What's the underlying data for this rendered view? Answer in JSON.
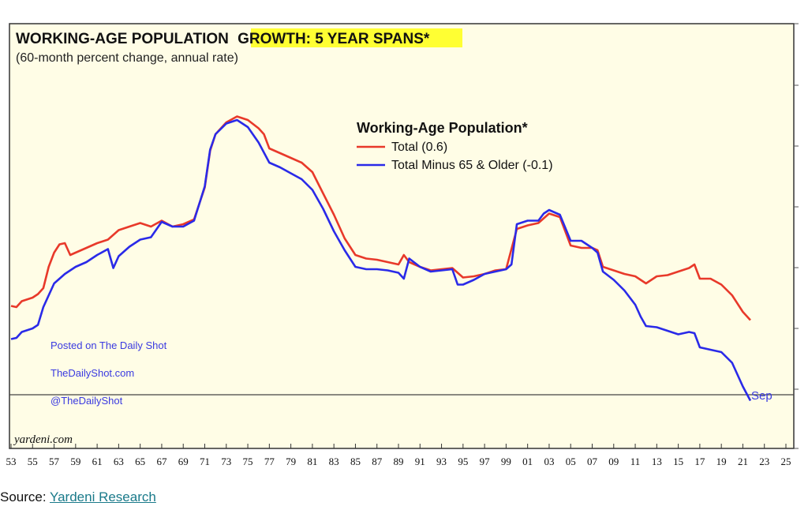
{
  "chart_data": {
    "type": "line",
    "title": "WORKING-AGE POPULATION",
    "title_highlight": "GROWTH: 5 YEAR SPANS*",
    "subtitle": "(60-month percent change, annual rate)",
    "legend_title": "Working-Age Population*",
    "legend_position": "top-center",
    "x_tick_labels": [
      "53",
      "55",
      "57",
      "59",
      "61",
      "63",
      "65",
      "67",
      "69",
      "71",
      "73",
      "75",
      "77",
      "79",
      "81",
      "83",
      "85",
      "87",
      "89",
      "91",
      "93",
      "95",
      "97",
      "99",
      "01",
      "03",
      "05",
      "07",
      "09",
      "11",
      "13",
      "15",
      "17",
      "19",
      "21",
      "23",
      "25"
    ],
    "xlim": [
      1953,
      2025
    ],
    "ylim": [
      -0.4,
      2.8
    ],
    "zero_line": 0.0,
    "series": [
      {
        "name": "Total (0.6)",
        "color": "#e8392a",
        "points": [
          [
            1953,
            0.75
          ],
          [
            1953.5,
            0.74
          ],
          [
            1954,
            0.79
          ],
          [
            1955,
            0.82
          ],
          [
            1955.5,
            0.85
          ],
          [
            1956,
            0.9
          ],
          [
            1956.5,
            1.08
          ],
          [
            1957,
            1.2
          ],
          [
            1957.5,
            1.27
          ],
          [
            1958,
            1.28
          ],
          [
            1958.5,
            1.18
          ],
          [
            1959,
            1.2
          ],
          [
            1960,
            1.24
          ],
          [
            1961,
            1.28
          ],
          [
            1962,
            1.31
          ],
          [
            1963,
            1.39
          ],
          [
            1964,
            1.42
          ],
          [
            1965,
            1.45
          ],
          [
            1966,
            1.42
          ],
          [
            1967,
            1.47
          ],
          [
            1968,
            1.42
          ],
          [
            1969,
            1.44
          ],
          [
            1970,
            1.48
          ],
          [
            1971,
            1.75
          ],
          [
            1971.5,
            2.06
          ],
          [
            1972,
            2.2
          ],
          [
            1973,
            2.3
          ],
          [
            1974,
            2.35
          ],
          [
            1975,
            2.32
          ],
          [
            1976,
            2.25
          ],
          [
            1976.5,
            2.2
          ],
          [
            1977,
            2.08
          ],
          [
            1978,
            2.04
          ],
          [
            1979,
            2.0
          ],
          [
            1980,
            1.96
          ],
          [
            1981,
            1.88
          ],
          [
            1982,
            1.7
          ],
          [
            1983,
            1.52
          ],
          [
            1984,
            1.32
          ],
          [
            1985,
            1.18
          ],
          [
            1986,
            1.15
          ],
          [
            1987,
            1.14
          ],
          [
            1988,
            1.12
          ],
          [
            1989,
            1.1
          ],
          [
            1989.5,
            1.18
          ],
          [
            1990,
            1.12
          ],
          [
            1991,
            1.08
          ],
          [
            1992,
            1.05
          ],
          [
            1993,
            1.06
          ],
          [
            1994,
            1.07
          ],
          [
            1995,
            0.99
          ],
          [
            1996,
            1.0
          ],
          [
            1997,
            1.02
          ],
          [
            1998,
            1.05
          ],
          [
            1999,
            1.06
          ],
          [
            2000,
            1.4
          ],
          [
            2001,
            1.43
          ],
          [
            2002,
            1.45
          ],
          [
            2002.5,
            1.49
          ],
          [
            2003,
            1.53
          ],
          [
            2004,
            1.5
          ],
          [
            2005,
            1.26
          ],
          [
            2006,
            1.24
          ],
          [
            2007,
            1.24
          ],
          [
            2007.5,
            1.22
          ],
          [
            2008,
            1.08
          ],
          [
            2009,
            1.05
          ],
          [
            2010,
            1.02
          ],
          [
            2011,
            1.0
          ],
          [
            2012,
            0.94
          ],
          [
            2013,
            1.0
          ],
          [
            2014,
            1.01
          ],
          [
            2015,
            1.04
          ],
          [
            2016,
            1.07
          ],
          [
            2016.5,
            1.1
          ],
          [
            2017,
            0.98
          ],
          [
            2018,
            0.98
          ],
          [
            2019,
            0.93
          ],
          [
            2020,
            0.84
          ],
          [
            2021,
            0.7
          ],
          [
            2021.7,
            0.63
          ]
        ]
      },
      {
        "name": "Total Minus 65 & Older (-0.1)",
        "color": "#2a2ae8",
        "points": [
          [
            1953,
            0.47
          ],
          [
            1953.5,
            0.48
          ],
          [
            1954,
            0.53
          ],
          [
            1955,
            0.56
          ],
          [
            1955.5,
            0.59
          ],
          [
            1956,
            0.74
          ],
          [
            1957,
            0.94
          ],
          [
            1958,
            1.02
          ],
          [
            1959,
            1.08
          ],
          [
            1960,
            1.12
          ],
          [
            1961,
            1.18
          ],
          [
            1962,
            1.23
          ],
          [
            1962.5,
            1.07
          ],
          [
            1963,
            1.17
          ],
          [
            1964,
            1.25
          ],
          [
            1965,
            1.31
          ],
          [
            1966,
            1.33
          ],
          [
            1967,
            1.46
          ],
          [
            1968,
            1.42
          ],
          [
            1969,
            1.42
          ],
          [
            1970,
            1.47
          ],
          [
            1971,
            1.76
          ],
          [
            1971.5,
            2.07
          ],
          [
            1972,
            2.2
          ],
          [
            1973,
            2.29
          ],
          [
            1974,
            2.32
          ],
          [
            1975,
            2.26
          ],
          [
            1976,
            2.13
          ],
          [
            1977,
            1.96
          ],
          [
            1978,
            1.92
          ],
          [
            1979,
            1.87
          ],
          [
            1980,
            1.82
          ],
          [
            1981,
            1.73
          ],
          [
            1982,
            1.57
          ],
          [
            1983,
            1.38
          ],
          [
            1984,
            1.22
          ],
          [
            1985,
            1.08
          ],
          [
            1986,
            1.06
          ],
          [
            1987,
            1.06
          ],
          [
            1988,
            1.05
          ],
          [
            1989,
            1.03
          ],
          [
            1989.5,
            0.98
          ],
          [
            1990,
            1.15
          ],
          [
            1991,
            1.08
          ],
          [
            1992,
            1.04
          ],
          [
            1993,
            1.05
          ],
          [
            1994,
            1.06
          ],
          [
            1994.5,
            0.93
          ],
          [
            1995,
            0.93
          ],
          [
            1996,
            0.97
          ],
          [
            1997,
            1.02
          ],
          [
            1998,
            1.04
          ],
          [
            1999,
            1.06
          ],
          [
            1999.5,
            1.1
          ],
          [
            2000,
            1.44
          ],
          [
            2001,
            1.47
          ],
          [
            2002,
            1.47
          ],
          [
            2002.5,
            1.53
          ],
          [
            2003,
            1.56
          ],
          [
            2004,
            1.52
          ],
          [
            2005,
            1.3
          ],
          [
            2006,
            1.3
          ],
          [
            2007,
            1.24
          ],
          [
            2007.5,
            1.2
          ],
          [
            2008,
            1.04
          ],
          [
            2009,
            0.97
          ],
          [
            2010,
            0.88
          ],
          [
            2011,
            0.76
          ],
          [
            2011.5,
            0.66
          ],
          [
            2012,
            0.58
          ],
          [
            2013,
            0.57
          ],
          [
            2014,
            0.54
          ],
          [
            2015,
            0.51
          ],
          [
            2016,
            0.53
          ],
          [
            2016.5,
            0.52
          ],
          [
            2017,
            0.4
          ],
          [
            2018,
            0.38
          ],
          [
            2019,
            0.36
          ],
          [
            2020,
            0.27
          ],
          [
            2021,
            0.07
          ],
          [
            2021.7,
            -0.05
          ]
        ]
      }
    ],
    "annotations": {
      "sep_label": "Sep",
      "notes": [
        "Posted on The Daily Shot",
        "TheDailyShot.com",
        "@TheDailyShot"
      ],
      "brand": "yardeni.com"
    },
    "colors": {
      "plot_background": "#fffde6",
      "title_highlight": "#ffff33",
      "total": "#e8392a",
      "minus65": "#2a2ae8"
    }
  },
  "source": {
    "prefix": "Source: ",
    "link_text": "Yardeni Research"
  }
}
